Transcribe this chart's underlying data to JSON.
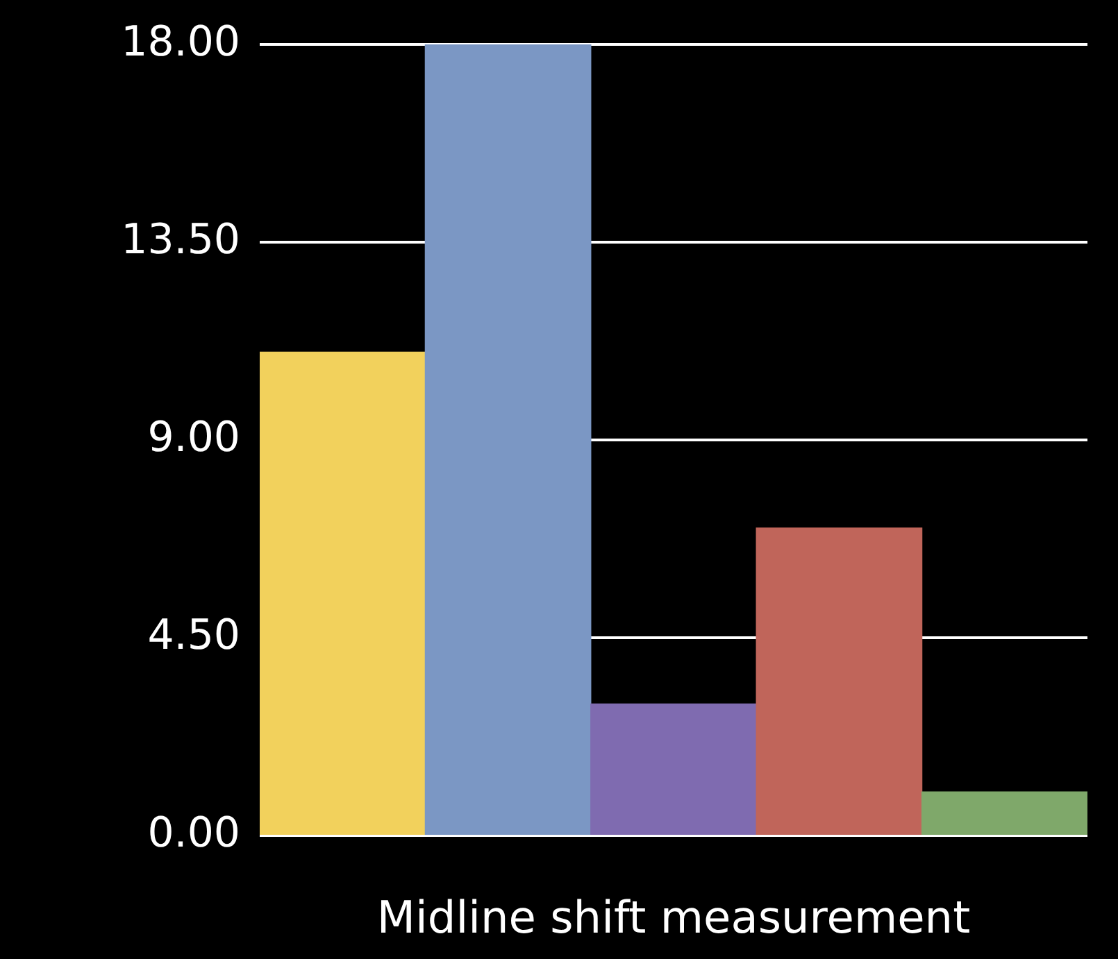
{
  "chart_data": {
    "type": "bar",
    "xlabel": "Midline shift measurement",
    "categories": [
      null,
      null,
      null,
      null,
      null
    ],
    "values": [
      11,
      18,
      3,
      7,
      1
    ],
    "colors": [
      "#f2d15c",
      "#7b97c4",
      "#7f6bb0",
      "#c0655a",
      "#7fa86a"
    ],
    "ylim": [
      0,
      18
    ],
    "yticks": [
      {
        "value": 0,
        "label": "0.00"
      },
      {
        "value": 4.5,
        "label": "4.50"
      },
      {
        "value": 9,
        "label": "9.00"
      },
      {
        "value": 13.5,
        "label": "13.50"
      },
      {
        "value": 18,
        "label": "18.00"
      }
    ],
    "grid": "y",
    "legend": false
  }
}
